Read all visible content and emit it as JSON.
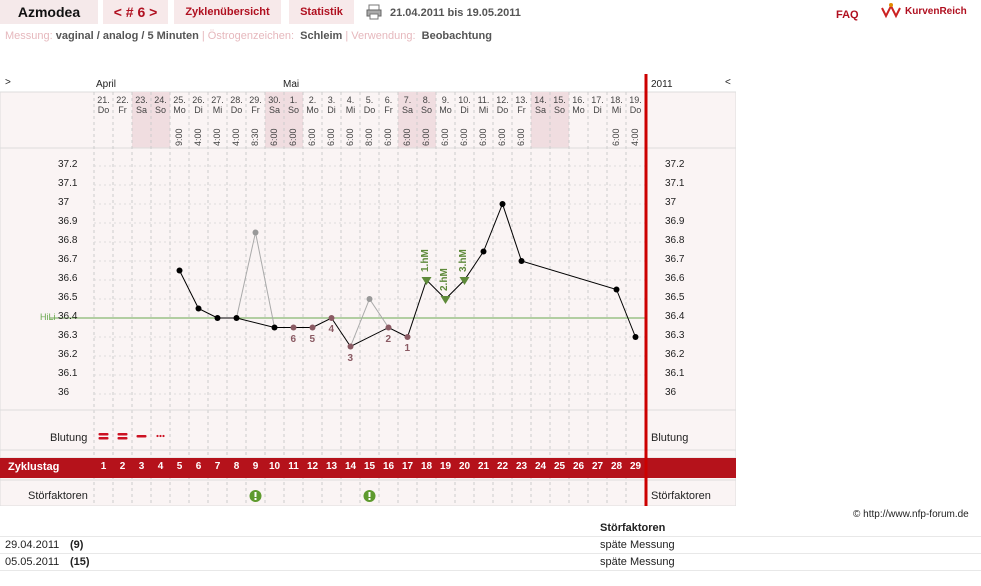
{
  "header": {
    "app_title": "Azmodea",
    "cycle_nav": "< # 6 >",
    "tab_overview": "Zyklenübersicht",
    "tab_stats": "Statistik",
    "date_range": "21.04.2011 bis 19.05.2011",
    "faq": "FAQ",
    "logo_text": "KurvenReich"
  },
  "subheader": {
    "label_measure": "Messung:",
    "value_measure": "vaginal / analog / 5 Minuten",
    "label_estrogen": "Östrogenzeichen:",
    "value_estrogen": "Schleim",
    "label_usage": "Verwendung:",
    "value_usage": "Beobachtung"
  },
  "chart_nav": {
    "left": ">",
    "right": "<",
    "year": "2011"
  },
  "months": {
    "april": "April",
    "mai": "Mai"
  },
  "days": [
    {
      "d": "21.",
      "w": "Do",
      "t": ""
    },
    {
      "d": "22.",
      "w": "Fr",
      "t": ""
    },
    {
      "d": "23.",
      "w": "Sa",
      "t": "",
      "we": true
    },
    {
      "d": "24.",
      "w": "So",
      "t": "",
      "we": true
    },
    {
      "d": "25.",
      "w": "Mo",
      "t": "9:00"
    },
    {
      "d": "26.",
      "w": "Di",
      "t": "4:00"
    },
    {
      "d": "27.",
      "w": "Mi",
      "t": "4:00"
    },
    {
      "d": "28.",
      "w": "Do",
      "t": "4:00"
    },
    {
      "d": "29.",
      "w": "Fr",
      "t": "8:30"
    },
    {
      "d": "30.",
      "w": "Sa",
      "t": "6:00",
      "we": true
    },
    {
      "d": "1.",
      "w": "So",
      "t": "6:00",
      "we": true
    },
    {
      "d": "2.",
      "w": "Mo",
      "t": "6:00"
    },
    {
      "d": "3.",
      "w": "Di",
      "t": "6:00"
    },
    {
      "d": "4.",
      "w": "Mi",
      "t": "6:00"
    },
    {
      "d": "5.",
      "w": "Do",
      "t": "8:00"
    },
    {
      "d": "6.",
      "w": "Fr",
      "t": "6:00"
    },
    {
      "d": "7.",
      "w": "Sa",
      "t": "6:00",
      "we": true
    },
    {
      "d": "8.",
      "w": "So",
      "t": "6:00",
      "we": true
    },
    {
      "d": "9.",
      "w": "Mo",
      "t": "6:00"
    },
    {
      "d": "10.",
      "w": "Di",
      "t": "6:00"
    },
    {
      "d": "11.",
      "w": "Mi",
      "t": "6:00"
    },
    {
      "d": "12.",
      "w": "Do",
      "t": "6:00"
    },
    {
      "d": "13.",
      "w": "Fr",
      "t": "6:00"
    },
    {
      "d": "14.",
      "w": "Sa",
      "t": "",
      "we": true
    },
    {
      "d": "15.",
      "w": "So",
      "t": "",
      "we": true
    },
    {
      "d": "16.",
      "w": "Mo",
      "t": ""
    },
    {
      "d": "17.",
      "w": "Di",
      "t": ""
    },
    {
      "d": "18.",
      "w": "Mi",
      "t": "6:00"
    },
    {
      "d": "19.",
      "w": "Do",
      "t": "4:00"
    }
  ],
  "yticks": [
    "37.2",
    "37.1",
    "37",
    "36.9",
    "36.8",
    "36.7",
    "36.6",
    "36.5",
    "36.4",
    "36.3",
    "36.2",
    "36.1",
    "36"
  ],
  "hil_label": "HiLi",
  "row_labels": {
    "blutung": "Blutung",
    "zyklustag": "Zyklustag",
    "stoerfaktoren": "Störfaktoren"
  },
  "zyklustage": [
    "1",
    "2",
    "3",
    "4",
    "5",
    "6",
    "7",
    "8",
    "9",
    "10",
    "11",
    "12",
    "13",
    "14",
    "15",
    "16",
    "17",
    "18",
    "19",
    "20",
    "21",
    "22",
    "23",
    "24",
    "25",
    "26",
    "27",
    "28",
    "29"
  ],
  "chart_data": {
    "type": "line",
    "hil": 36.4,
    "ylim": [
      36.0,
      37.2
    ],
    "points": [
      {
        "day": 5,
        "y": 36.65,
        "kind": "normal"
      },
      {
        "day": 6,
        "y": 36.45,
        "kind": "normal"
      },
      {
        "day": 7,
        "y": 36.4,
        "kind": "normal"
      },
      {
        "day": 8,
        "y": 36.4,
        "kind": "normal"
      },
      {
        "day": 9,
        "y": 36.85,
        "kind": "excluded"
      },
      {
        "day": 10,
        "y": 36.35,
        "kind": "normal"
      },
      {
        "day": 11,
        "y": 36.35,
        "kind": "low",
        "label": "6"
      },
      {
        "day": 12,
        "y": 36.35,
        "kind": "low",
        "label": "5"
      },
      {
        "day": 13,
        "y": 36.4,
        "kind": "low",
        "label": "4"
      },
      {
        "day": 14,
        "y": 36.25,
        "kind": "low",
        "label": "3"
      },
      {
        "day": 15,
        "y": 36.5,
        "kind": "excluded"
      },
      {
        "day": 16,
        "y": 36.35,
        "kind": "low",
        "label": "2"
      },
      {
        "day": 17,
        "y": 36.3,
        "kind": "low",
        "label": "1"
      },
      {
        "day": 18,
        "y": 36.6,
        "kind": "high",
        "label": "1.hM"
      },
      {
        "day": 19,
        "y": 36.5,
        "kind": "high",
        "label": "2.hM"
      },
      {
        "day": 20,
        "y": 36.6,
        "kind": "high",
        "label": "3.hM"
      },
      {
        "day": 21,
        "y": 36.75,
        "kind": "normal"
      },
      {
        "day": 22,
        "y": 37.0,
        "kind": "normal"
      },
      {
        "day": 23,
        "y": 36.7,
        "kind": "normal"
      },
      {
        "day": 28,
        "y": 36.55,
        "kind": "normal"
      },
      {
        "day": 29,
        "y": 36.3,
        "kind": "normal"
      }
    ],
    "bleeding": [
      {
        "day": 1,
        "intensity": "stark"
      },
      {
        "day": 2,
        "intensity": "stark"
      },
      {
        "day": 3,
        "intensity": "mittel"
      },
      {
        "day": 4,
        "intensity": "schmier"
      }
    ],
    "stoerfaktoren_days": [
      9,
      15
    ],
    "colors": {
      "normal": "#000000",
      "excluded": "#999999",
      "low": "#8a5a63",
      "high": "#5e8a3a",
      "hil": "#6aa84f",
      "cycle_end": "#cc0000",
      "row_bar": "#b5121b"
    }
  },
  "copyright": "© http://www.nfp-forum.de",
  "stoer_table": {
    "header": "Störfaktoren",
    "rows": [
      {
        "date": "29.04.2011",
        "day": "(9)",
        "text": "späte Messung"
      },
      {
        "date": "05.05.2011",
        "day": "(15)",
        "text": "späte Messung"
      }
    ]
  }
}
